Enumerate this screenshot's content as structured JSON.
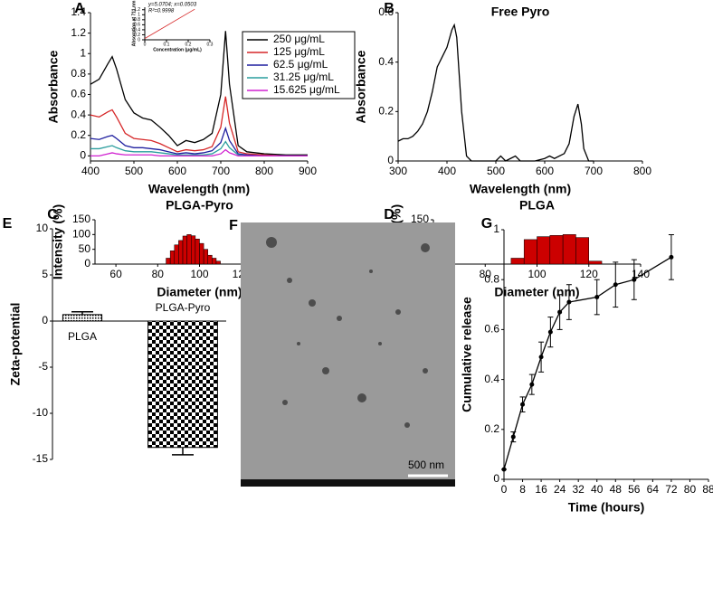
{
  "chart_data": [
    {
      "type": "line",
      "panel": "A",
      "xlabel": "Wavelength (nm)",
      "ylabel": "Absorbance",
      "legend": true,
      "x": [
        400,
        420,
        440,
        450,
        460,
        480,
        500,
        520,
        540,
        560,
        580,
        600,
        620,
        640,
        660,
        680,
        700,
        711,
        720,
        740,
        760,
        800,
        850,
        900
      ],
      "series": [
        {
          "name": "250 μg/mL",
          "color": "#000000",
          "values": [
            0.7,
            0.75,
            0.9,
            0.97,
            0.85,
            0.55,
            0.42,
            0.37,
            0.35,
            0.28,
            0.2,
            0.1,
            0.15,
            0.13,
            0.16,
            0.22,
            0.6,
            1.22,
            0.7,
            0.1,
            0.04,
            0.02,
            0.01,
            0.01
          ]
        },
        {
          "name": "125 μg/mL",
          "color": "#d62728",
          "values": [
            0.4,
            0.38,
            0.43,
            0.45,
            0.38,
            0.22,
            0.17,
            0.16,
            0.15,
            0.12,
            0.08,
            0.04,
            0.06,
            0.05,
            0.06,
            0.09,
            0.28,
            0.58,
            0.32,
            0.04,
            0.02,
            0.01,
            0,
            0
          ]
        },
        {
          "name": "62.5 μg/mL",
          "color": "#1f1f9f",
          "values": [
            0.17,
            0.16,
            0.19,
            0.2,
            0.17,
            0.1,
            0.08,
            0.08,
            0.07,
            0.06,
            0.04,
            0.02,
            0.03,
            0.02,
            0.03,
            0.05,
            0.13,
            0.27,
            0.15,
            0.02,
            0.01,
            0,
            0,
            0
          ]
        },
        {
          "name": "31.25 μg/mL",
          "color": "#2a9d9d",
          "values": [
            0.07,
            0.07,
            0.09,
            0.1,
            0.08,
            0.05,
            0.04,
            0.04,
            0.04,
            0.03,
            0.02,
            0.01,
            0.01,
            0.01,
            0.01,
            0.02,
            0.07,
            0.14,
            0.08,
            0.01,
            0,
            0,
            0,
            0
          ]
        },
        {
          "name": "15.625 μg/mL",
          "color": "#d020d0",
          "values": [
            0,
            0,
            0.02,
            0.03,
            0.02,
            0.01,
            0.01,
            0.01,
            0.01,
            0,
            0,
            0,
            0,
            0,
            0,
            0,
            0.02,
            0.06,
            0.03,
            0,
            0,
            0,
            0,
            0
          ]
        }
      ],
      "xlim": [
        400,
        900
      ],
      "xticks": [
        400,
        500,
        600,
        700,
        800,
        900
      ],
      "ylim": [
        -0.05,
        1.4
      ],
      "yticks": [
        0,
        0.2,
        0.4,
        0.6,
        0.8,
        1,
        1.2,
        1.4
      ]
    },
    {
      "type": "line",
      "annotations": [
        "y=5.0704; x=0.0503",
        "R²=0.9998"
      ],
      "xlabel": "Concentration (μg/mL)",
      "ylabel": "Absorption at 711 nm",
      "x": [
        0,
        0.23
      ],
      "series": [
        {
          "color": "#d62728",
          "values": [
            0.0503,
            1.22
          ]
        }
      ],
      "xlim": [
        0,
        0.3
      ],
      "xticks": [
        0,
        0.1,
        0.2,
        0.3
      ],
      "ylim": [
        0,
        1.3
      ],
      "yticks": [
        0,
        0.2,
        0.4,
        0.6,
        0.8,
        1,
        1.2
      ]
    },
    {
      "type": "line",
      "panel": "B",
      "title": "Free Pyro",
      "xlabel": "Wavelength (nm)",
      "ylabel": "Absorbance",
      "x": [
        300,
        310,
        320,
        330,
        340,
        350,
        360,
        370,
        380,
        390,
        400,
        410,
        415,
        420,
        430,
        440,
        450,
        480,
        500,
        510,
        520,
        530,
        540,
        550,
        580,
        600,
        610,
        620,
        640,
        650,
        660,
        668,
        675,
        680,
        690,
        700
      ],
      "series": [
        {
          "color": "#000000",
          "values": [
            0.08,
            0.09,
            0.09,
            0.1,
            0.12,
            0.15,
            0.2,
            0.28,
            0.38,
            0.42,
            0.46,
            0.53,
            0.55,
            0.5,
            0.2,
            0.02,
            0,
            0,
            0,
            0.02,
            0,
            0.01,
            0.02,
            0,
            0,
            0.01,
            0.02,
            0.01,
            0.03,
            0.07,
            0.18,
            0.23,
            0.15,
            0.05,
            0,
            0
          ]
        }
      ],
      "xlim": [
        300,
        800
      ],
      "xticks": [
        300,
        400,
        500,
        600,
        700,
        800
      ],
      "ylim": [
        0,
        0.6
      ],
      "yticks": [
        0,
        0.2,
        0.4,
        0.6
      ]
    },
    {
      "type": "histogram",
      "panel": "C",
      "title": "PLGA-Pyro",
      "xlabel": "Diameter (nm)",
      "ylabel": "Intensity (%)",
      "color": "#cc0000",
      "bins": [
        84,
        86,
        88,
        90,
        92,
        94,
        96,
        98,
        100,
        102,
        104,
        106,
        108,
        110
      ],
      "counts": [
        20,
        45,
        65,
        80,
        95,
        100,
        96,
        85,
        70,
        50,
        30,
        20,
        10
      ],
      "xlim": [
        50,
        150
      ],
      "xticks": [
        60,
        80,
        100,
        120,
        140
      ],
      "ylim": [
        0,
        150
      ],
      "yticks": [
        0,
        50,
        100,
        150
      ]
    },
    {
      "type": "histogram",
      "panel": "D",
      "title": "PLGA",
      "xlabel": "Diameter (nm)",
      "ylabel": "Intensity (%)",
      "color": "#cc0000",
      "bins": [
        90,
        95,
        100,
        105,
        110,
        115,
        120,
        125
      ],
      "counts": [
        20,
        83,
        93,
        97,
        100,
        90,
        10
      ],
      "xlim": [
        60,
        140
      ],
      "xticks": [
        60,
        80,
        100,
        120,
        140
      ],
      "ylim": [
        0,
        150
      ],
      "yticks": [
        0,
        50,
        100,
        150
      ]
    },
    {
      "type": "bar",
      "panel": "E",
      "ylabel": "Zeta-potential",
      "categories": [
        "PLGA",
        "PLGA-Pyro"
      ],
      "values": [
        0.7,
        -13.7
      ],
      "errors": [
        0.3,
        0.8
      ],
      "ylim": [
        -15,
        10
      ],
      "yticks": [
        -15,
        -10,
        -5,
        0,
        5,
        10
      ]
    },
    {
      "type": "image",
      "panel": "F",
      "scale_bar": "500 nm"
    },
    {
      "type": "line",
      "panel": "G",
      "xlabel": "Time (hours)",
      "ylabel": "Cumulative release",
      "x": [
        0,
        4,
        8,
        12,
        16,
        20,
        24,
        28,
        40,
        48,
        56,
        72
      ],
      "series": [
        {
          "color": "#000000",
          "values": [
            0.04,
            0.17,
            0.3,
            0.38,
            0.49,
            0.59,
            0.67,
            0.71,
            0.73,
            0.78,
            0.8,
            0.89
          ],
          "errors": [
            0,
            0.02,
            0.03,
            0.04,
            0.06,
            0.06,
            0.07,
            0.07,
            0.07,
            0.09,
            0.08,
            0.09
          ]
        }
      ],
      "xlim": [
        0,
        88
      ],
      "xticks": [
        0,
        8,
        16,
        24,
        32,
        40,
        48,
        56,
        64,
        72,
        80,
        88
      ],
      "ylim": [
        0,
        1
      ],
      "yticks": [
        0,
        0.2,
        0.4,
        0.6,
        0.8,
        1
      ]
    }
  ]
}
